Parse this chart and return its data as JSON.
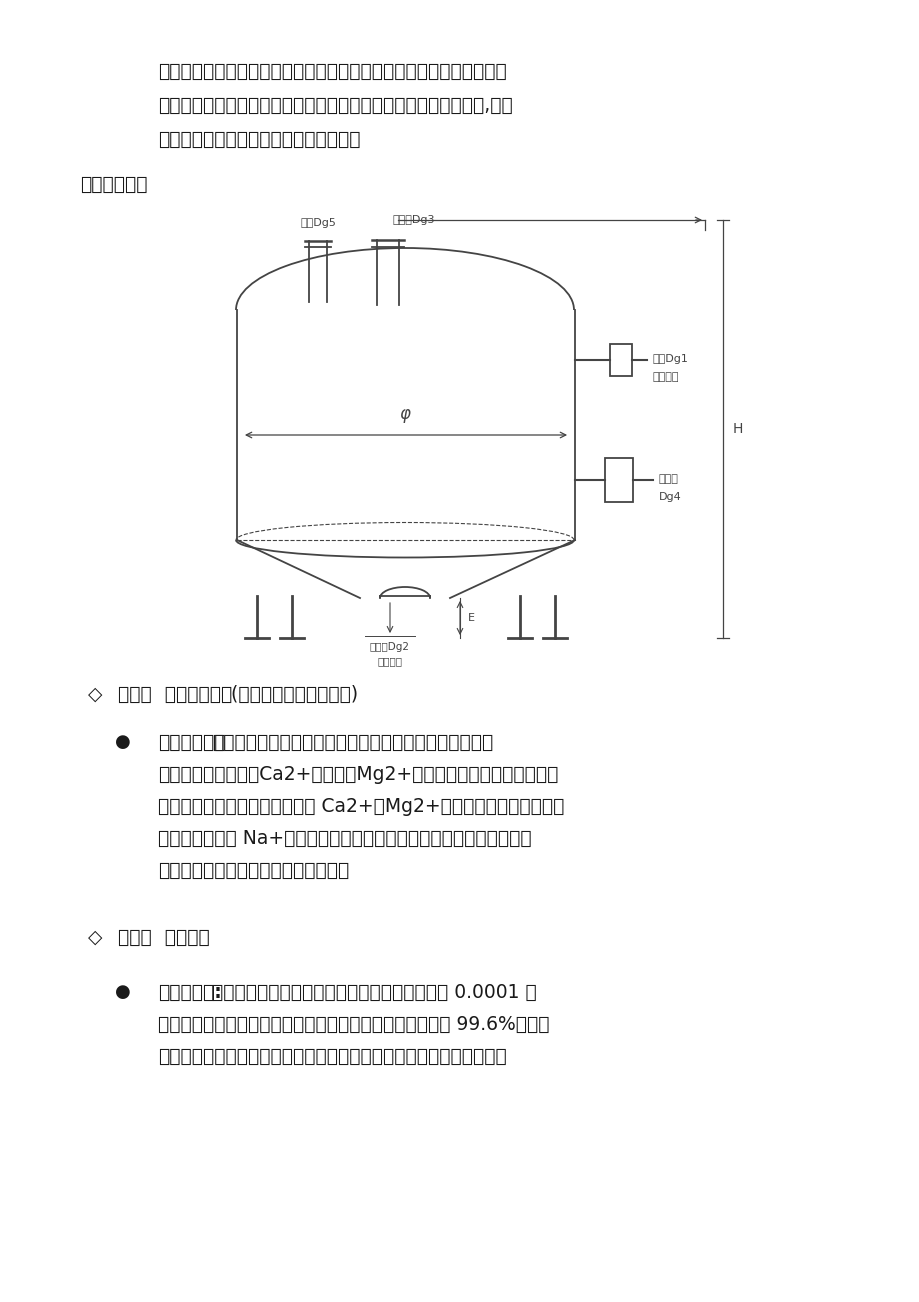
{
  "bg_color": "#ffffff",
  "text_color": "#1a1a1a",
  "page_width": 9.2,
  "page_height": 13.02,
  "top_text_lines": [
    "水中的色素、异味、大量生化有机物，降低水中的余氯值及农药污染和",
    "其他对人体有害的污染物质。自动过滤系统采用进口富莱克控制器,可以",
    "自动进行反冲洗、正冲洗等一系列操作。"
  ],
  "section_label": "结构示意图：",
  "level3_header_prefix": "◇",
  "level3_header_bold": "第三级  软化处理系统",
  "level3_header_normal": "  (根据地方原水水质选配)",
  "level4_header_prefix": "◇",
  "level4_header_bold": "第四级  脱盐处理",
  "bullet1_bold": "阳离子树脂：",
  "bullet1_lines": [
    "采用阳离子树脂对水进行软化，主要去除水中的硬度。水",
    "的硬度主要是有钙（Ca2+）、镁（Mg2+）离子构成的，当含有硬度离",
    "子的原水通过树脂层时，水中的 Ca2+、Mg2+被树脂交换吸附，同时等",
    "物质量释放出钠 Na+离子，从软水器内流出的水就是去掉了硬度离子的",
    "软化水。从而有效防止逆渗透膜结垢。"
  ],
  "bullet2_bold": "反渗透脱盐:",
  "bullet2_lines": [
    "采用反渗透技术进行脱盐处理，反渗透膜孔径为 0.0001 微",
    "米，能去除有害的可溶解性固体及细菌、病毒等，脱盐率达 99.6%以上，",
    "生产出符合国家标准的纯净水，主机部分包含保安过滤器、高压泵和反"
  ],
  "diagram_label_exhaust": "排气Dg5",
  "diagram_label_feed": "装料口Dg3",
  "diagram_label_inlet": "进水Dg1",
  "diagram_label_backwash": "反洗排水",
  "diagram_label_discharge": "卸料口",
  "diagram_label_dg4": "Dg4",
  "diagram_label_outlet": "出水口Dg2",
  "diagram_label_backwash2": "反洗进水",
  "diagram_label_phi": "φ",
  "diagram_label_H": "H",
  "diagram_label_E": "E"
}
